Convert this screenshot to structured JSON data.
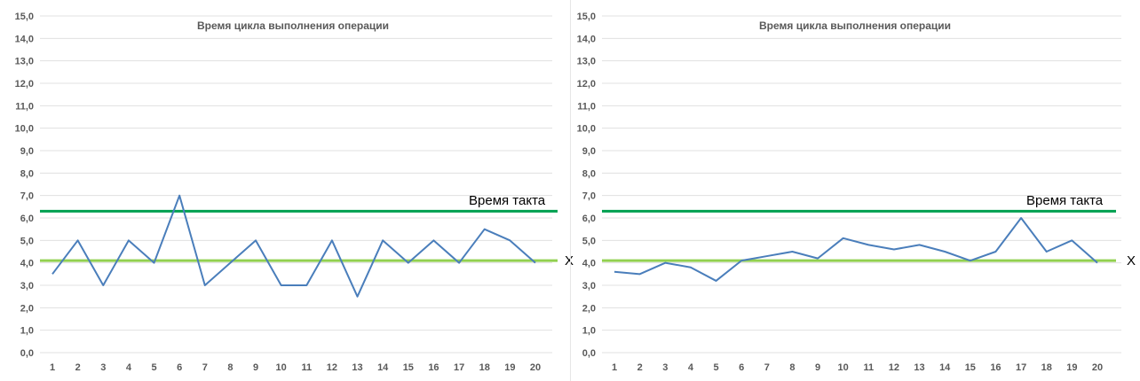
{
  "chart_data": [
    {
      "type": "line",
      "title": "Время цикла выполнения операции",
      "categories": [
        "1",
        "2",
        "3",
        "4",
        "5",
        "6",
        "7",
        "8",
        "9",
        "10",
        "11",
        "12",
        "13",
        "14",
        "15",
        "16",
        "17",
        "18",
        "19",
        "20"
      ],
      "series": [
        {
          "values": [
            3.5,
            5.0,
            3.0,
            5.0,
            4.0,
            7.0,
            3.0,
            4.0,
            5.0,
            3.0,
            3.0,
            5.0,
            2.5,
            5.0,
            4.0,
            5.0,
            4.0,
            5.5,
            5.0,
            4.0
          ],
          "color": "#4a7ebb"
        }
      ],
      "reference_lines": [
        {
          "label": "Время такта",
          "value": 6.3,
          "color": "#00a050"
        },
        {
          "label": "X",
          "value": 4.1,
          "color": "#92d050"
        }
      ],
      "yticks": [
        "0,0",
        "1,0",
        "2,0",
        "3,0",
        "4,0",
        "5,0",
        "6,0",
        "7,0",
        "8,0",
        "9,0",
        "10,0",
        "11,0",
        "12,0",
        "13,0",
        "14,0",
        "15,0"
      ],
      "ylim": [
        0,
        15
      ],
      "grid": true
    },
    {
      "type": "line",
      "title": "Время цикла выполнения операции",
      "categories": [
        "1",
        "2",
        "3",
        "4",
        "5",
        "6",
        "7",
        "8",
        "9",
        "10",
        "11",
        "12",
        "13",
        "14",
        "15",
        "16",
        "17",
        "18",
        "19",
        "20"
      ],
      "series": [
        {
          "values": [
            3.6,
            3.5,
            4.0,
            3.8,
            3.2,
            4.1,
            4.3,
            4.5,
            4.2,
            5.1,
            4.8,
            4.6,
            4.8,
            4.5,
            4.1,
            4.5,
            6.0,
            4.5,
            5.0,
            4.0
          ],
          "color": "#4a7ebb"
        }
      ],
      "reference_lines": [
        {
          "label": "Время такта",
          "value": 6.3,
          "color": "#00a050"
        },
        {
          "label": "X",
          "value": 4.1,
          "color": "#92d050"
        }
      ],
      "yticks": [
        "0,0",
        "1,0",
        "2,0",
        "3,0",
        "4,0",
        "5,0",
        "6,0",
        "7,0",
        "8,0",
        "9,0",
        "10,0",
        "11,0",
        "12,0",
        "13,0",
        "14,0",
        "15,0"
      ],
      "ylim": [
        0,
        15
      ],
      "grid": true
    }
  ]
}
